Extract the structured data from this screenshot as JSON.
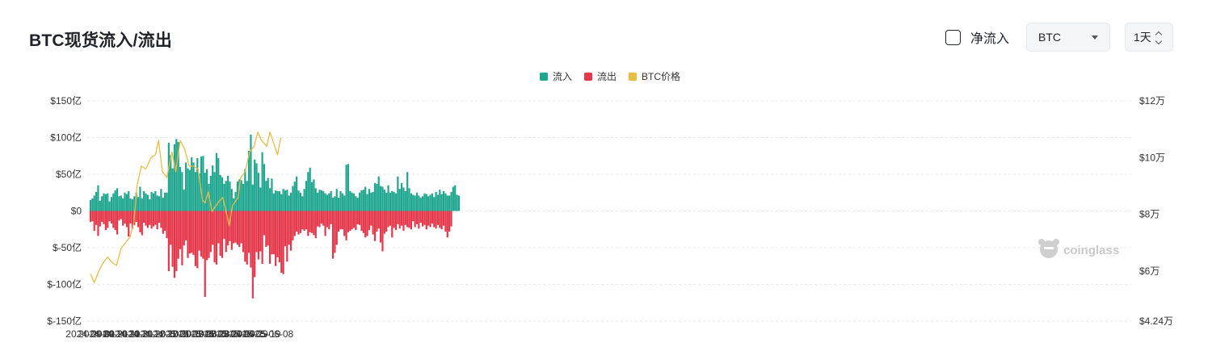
{
  "title": "BTC现货流入/流出",
  "controls": {
    "net_flow_label": "净流入",
    "net_flow_checked": false,
    "asset_select_value": "BTC",
    "interval_value": "1天"
  },
  "watermark": "coinglass",
  "colors": {
    "inflow": "#1fa68f",
    "outflow": "#e5364a",
    "price": "#e9bc45",
    "grid": "#e8e8e8"
  },
  "chart_data": {
    "type": "bar",
    "title": "",
    "legend": [
      "流入",
      "流出",
      "BTC价格"
    ],
    "legend_position": "top-center",
    "grid": true,
    "x_labels": [
      "2024-09-01",
      "2024-09-21",
      "2024-10-11",
      "2024-10-31",
      "2024-11-20",
      "2024-12-10",
      "2024-12-30",
      "2025-01-19",
      "2025-02-08",
      "2025-02-28",
      "2025-03-20",
      "2025-04-09",
      "2025-04-29",
      "2025-05-19",
      "2025-06-08"
    ],
    "y_left": {
      "unit": "亿 USD",
      "ticks": [
        150,
        100,
        50,
        0,
        -50,
        -100,
        -150
      ],
      "tick_labels": [
        "$150亿",
        "$100亿",
        "$50亿",
        "$0",
        "$-50亿",
        "$-100亿",
        "$-150亿"
      ],
      "range": [
        -150,
        150
      ]
    },
    "y_right": {
      "unit": "万 USD",
      "ticks": [
        12,
        10,
        8,
        6,
        4.24
      ],
      "tick_labels": [
        "$12万",
        "$10万",
        "$8万",
        "$6万",
        "$4.24万"
      ],
      "range": [
        4.24,
        12
      ]
    },
    "series": [
      {
        "name": "流入",
        "type": "bar",
        "axis": "left",
        "start_date": "2024-09-01",
        "interval_days": 3,
        "values": [
          15,
          17,
          21,
          26,
          35,
          14,
          20,
          24,
          23,
          24,
          13,
          19,
          24,
          28,
          31,
          20,
          21,
          17,
          25,
          23,
          27,
          17,
          16,
          20,
          25,
          19,
          33,
          17,
          27,
          24,
          22,
          16,
          26,
          24,
          27,
          21,
          20,
          30,
          18,
          25,
          25,
          93,
          76,
          58,
          91,
          98,
          94,
          60,
          53,
          29,
          66,
          58,
          56,
          73,
          66,
          53,
          72,
          51,
          74,
          75,
          52,
          57,
          37,
          48,
          62,
          53,
          79,
          72,
          49,
          46,
          37,
          41,
          48,
          40,
          30,
          17,
          26,
          40,
          43,
          42,
          37,
          57,
          41,
          82,
          104,
          36,
          70,
          65,
          52,
          32,
          80,
          64,
          41,
          45,
          31,
          44,
          24,
          28,
          27,
          27,
          23,
          30,
          28,
          29,
          21,
          25,
          34,
          40,
          47,
          28,
          25,
          20,
          30,
          41,
          53,
          59,
          39,
          43,
          31,
          25,
          29,
          28,
          27,
          24,
          22,
          24,
          27,
          18,
          20,
          30,
          18,
          27,
          24,
          21,
          63,
          64,
          27,
          25,
          24,
          20,
          18,
          25,
          28,
          29,
          33,
          23,
          30,
          25,
          26,
          38,
          37,
          47,
          34,
          33,
          29,
          25,
          35,
          25,
          27,
          26,
          24,
          47,
          30,
          38,
          32,
          27,
          53,
          31,
          24,
          22,
          21,
          25,
          21,
          18,
          20,
          24,
          23,
          20,
          22,
          24,
          19,
          26,
          22,
          29,
          23,
          27,
          24,
          21,
          21,
          26,
          33,
          35,
          22,
          21
        ]
      },
      {
        "name": "流出",
        "type": "bar",
        "axis": "left",
        "start_date": "2024-09-01",
        "interval_days": 3,
        "values": [
          -15,
          -14,
          -27,
          -19,
          -34,
          -21,
          -15,
          -18,
          -26,
          -23,
          -14,
          -17,
          -23,
          -26,
          -32,
          -13,
          -11,
          -20,
          -17,
          -22,
          -35,
          -17,
          -24,
          -19,
          -15,
          -22,
          -29,
          -33,
          -16,
          -20,
          -23,
          -19,
          -24,
          -21,
          -19,
          -25,
          -16,
          -23,
          -31,
          -27,
          -37,
          -82,
          -46,
          -76,
          -91,
          -82,
          -65,
          -52,
          -74,
          -47,
          -40,
          -64,
          -58,
          -57,
          -60,
          -75,
          -78,
          -54,
          -62,
          -65,
          -117,
          -67,
          -64,
          -56,
          -46,
          -70,
          -73,
          -44,
          -61,
          -64,
          -38,
          -56,
          -47,
          -41,
          -53,
          -44,
          -43,
          -46,
          -49,
          -44,
          -56,
          -69,
          -73,
          -57,
          -77,
          -119,
          -90,
          -56,
          -66,
          -55,
          -72,
          -33,
          -49,
          -47,
          -72,
          -59,
          -59,
          -75,
          -63,
          -70,
          -84,
          -86,
          -48,
          -69,
          -46,
          -54,
          -40,
          -34,
          -28,
          -32,
          -30,
          -25,
          -27,
          -25,
          -34,
          -29,
          -30,
          -33,
          -37,
          -21,
          -22,
          -17,
          -20,
          -34,
          -22,
          -25,
          -18,
          -65,
          -57,
          -46,
          -28,
          -25,
          -25,
          -34,
          -40,
          -29,
          -27,
          -25,
          -23,
          -26,
          -18,
          -19,
          -27,
          -30,
          -36,
          -34,
          -26,
          -20,
          -32,
          -41,
          -28,
          -24,
          -43,
          -55,
          -31,
          -28,
          -22,
          -20,
          -36,
          -23,
          -26,
          -18,
          -24,
          -20,
          -27,
          -19,
          -22,
          -23,
          -25,
          -14,
          -22,
          -18,
          -24,
          -16,
          -21,
          -19,
          -25,
          -20,
          -22,
          -17,
          -22,
          -24,
          -19,
          -23,
          -25,
          -20,
          -28,
          -36,
          -28,
          -21
        ]
      },
      {
        "name": "BTC价格",
        "type": "line",
        "axis": "right",
        "x": [
          "2024-09-01",
          "2024-09-07",
          "2024-09-14",
          "2024-09-21",
          "2024-09-28",
          "2024-10-05",
          "2024-10-12",
          "2024-10-19",
          "2024-10-26",
          "2024-11-02",
          "2024-11-08",
          "2024-11-13",
          "2024-11-20",
          "2024-11-27",
          "2024-12-05",
          "2024-12-12",
          "2024-12-17",
          "2024-12-23",
          "2024-12-30",
          "2025-01-07",
          "2025-01-13",
          "2025-01-20",
          "2025-01-27",
          "2025-02-03",
          "2025-02-10",
          "2025-02-17",
          "2025-02-24",
          "2025-02-28",
          "2025-03-05",
          "2025-03-11",
          "2025-03-20",
          "2025-03-28",
          "2025-04-07",
          "2025-04-12",
          "2025-04-21",
          "2025-04-25",
          "2025-05-02",
          "2025-05-09",
          "2025-05-16",
          "2025-05-22",
          "2025-05-28",
          "2025-06-05",
          "2025-06-10",
          "2025-06-16",
          "2025-06-22",
          "2025-06-27"
        ],
        "values": [
          5.9,
          5.6,
          6.0,
          6.3,
          6.5,
          6.3,
          6.2,
          6.8,
          7.0,
          7.2,
          7.7,
          9.0,
          9.7,
          9.6,
          10.0,
          10.1,
          10.6,
          9.5,
          9.3,
          10.2,
          9.5,
          10.6,
          10.3,
          9.7,
          9.7,
          9.6,
          8.5,
          8.4,
          8.8,
          8.1,
          8.4,
          8.6,
          7.6,
          8.3,
          8.6,
          9.3,
          9.5,
          10.2,
          10.4,
          10.9,
          10.6,
          10.4,
          10.9,
          10.5,
          10.1,
          10.7
        ]
      }
    ]
  }
}
